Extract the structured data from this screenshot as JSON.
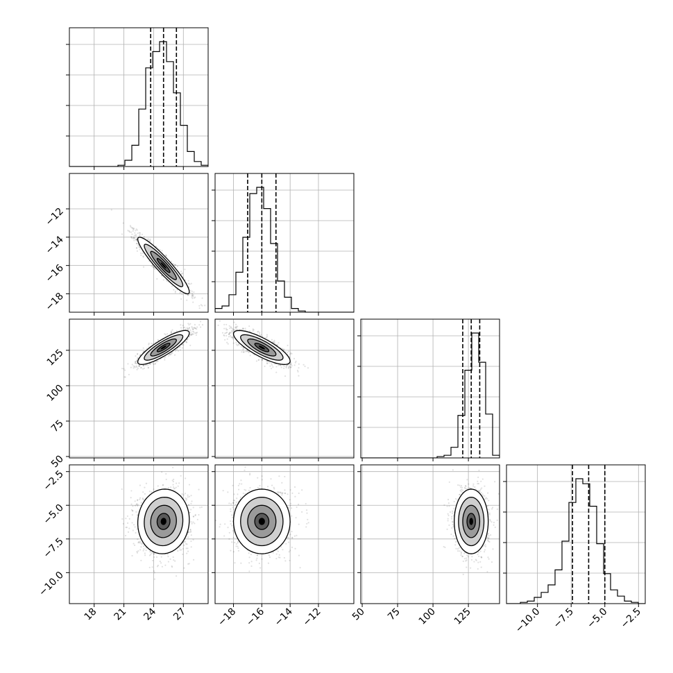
{
  "figure": {
    "background": "#ffffff",
    "scatter_color": "#000000",
    "axis_color": "#000000",
    "grid_color": "#b0b0b0"
  },
  "chart_data": {
    "type": "corner",
    "parameters": [
      {
        "range": [
          15.5,
          29.5
        ],
        "ticks": [
          18,
          21,
          24,
          27
        ],
        "tick_labels": [
          "18",
          "21",
          "24",
          "27"
        ],
        "quantiles": [
          23.7,
          25.0,
          26.3
        ]
      },
      {
        "range": [
          -19.3,
          -9.5
        ],
        "ticks": [
          -18,
          -16,
          -14,
          -12
        ],
        "tick_labels": [
          "−18",
          "−16",
          "−14",
          "−12"
        ],
        "quantiles": [
          -17.0,
          -16.0,
          -15.0
        ]
      },
      {
        "range": [
          49,
          147
        ],
        "ticks": [
          50,
          75,
          100,
          125
        ],
        "tick_labels": [
          "50",
          "75",
          "100",
          "125"
        ],
        "quantiles": [
          121,
          127,
          133
        ]
      },
      {
        "range": [
          -12.3,
          -2.0
        ],
        "ticks": [
          -10.0,
          -7.5,
          -5.0,
          -2.5
        ],
        "tick_labels": [
          "−10.0",
          "−7.5",
          "−5.0",
          "−2.5"
        ],
        "quantiles": [
          -7.4,
          -6.2,
          -5.0
        ]
      }
    ],
    "histograms": [
      {
        "param": 0,
        "bins": [
          15.5,
          16.2,
          16.9,
          17.6,
          18.3,
          19.0,
          19.7,
          20.4,
          21.1,
          21.8,
          22.5,
          23.2,
          23.9,
          24.6,
          25.3,
          26.0,
          26.7,
          27.4,
          28.1,
          28.8,
          29.5
        ],
        "counts": [
          0,
          0,
          0,
          0,
          0,
          0,
          0,
          0.01,
          0.05,
          0.17,
          0.46,
          0.79,
          0.92,
          1.0,
          0.84,
          0.59,
          0.33,
          0.12,
          0.04,
          0.01
        ]
      },
      {
        "param": 1,
        "bins": [
          -19.3,
          -18.81,
          -18.32,
          -17.83,
          -17.34,
          -16.85,
          -16.36,
          -15.87,
          -15.38,
          -14.89,
          -14.4,
          -13.91,
          -13.42,
          -12.93,
          -12.44,
          -11.95,
          -11.46,
          -10.97,
          -10.48,
          -9.99,
          -9.5
        ],
        "counts": [
          0.03,
          0.05,
          0.14,
          0.32,
          0.6,
          0.95,
          1.0,
          0.83,
          0.55,
          0.25,
          0.12,
          0.03,
          0.01,
          0,
          0,
          0,
          0,
          0,
          0,
          0
        ]
      },
      {
        "param": 2,
        "bins": [
          49,
          53.9,
          58.8,
          63.7,
          68.6,
          73.5,
          78.4,
          83.3,
          88.2,
          93.1,
          98,
          102.9,
          107.8,
          112.7,
          117.6,
          122.5,
          127.4,
          132.3,
          137.2,
          142.1,
          147
        ],
        "counts": [
          0,
          0,
          0,
          0,
          0,
          0,
          0,
          0,
          0,
          0,
          0,
          0.01,
          0.02,
          0.08,
          0.32,
          0.66,
          0.94,
          0.72,
          0.33,
          0.02
        ]
      },
      {
        "param": 3,
        "bins": [
          -12.3,
          -11.785,
          -11.27,
          -10.755,
          -10.24,
          -9.725,
          -9.21,
          -8.695,
          -8.18,
          -7.665,
          -7.15,
          -6.635,
          -6.12,
          -5.605,
          -5.09,
          -4.575,
          -4.06,
          -3.545,
          -3.03,
          -2.515,
          -2.0
        ],
        "counts": [
          0,
          0,
          0.01,
          0.02,
          0.05,
          0.09,
          0.15,
          0.27,
          0.5,
          0.81,
          1.0,
          0.96,
          0.78,
          0.48,
          0.24,
          0.11,
          0.06,
          0.02,
          0.01,
          0
        ]
      }
    ],
    "joint_2d": [
      {
        "x_param": 0,
        "y_param": 1,
        "mean": [
          25.0,
          -16.0
        ],
        "sd": [
          1.3,
          1.0
        ],
        "corr": -0.93
      },
      {
        "x_param": 0,
        "y_param": 2,
        "mean": [
          25.0,
          127
        ],
        "sd": [
          1.3,
          6
        ],
        "corr": 0.85
      },
      {
        "x_param": 1,
        "y_param": 2,
        "mean": [
          -16.0,
          127
        ],
        "sd": [
          1.0,
          6
        ],
        "corr": -0.8
      },
      {
        "x_param": 0,
        "y_param": 3,
        "mean": [
          25.0,
          -6.2
        ],
        "sd": [
          1.3,
          1.2
        ],
        "corr": 0.05
      },
      {
        "x_param": 1,
        "y_param": 3,
        "mean": [
          -16.0,
          -6.2
        ],
        "sd": [
          1.0,
          1.2
        ],
        "corr": 0.0
      },
      {
        "x_param": 2,
        "y_param": 3,
        "mean": [
          127,
          -6.2
        ],
        "sd": [
          6,
          1.2
        ],
        "corr": 0.0
      }
    ],
    "contour_levels_sigma": [
      0.5,
      1.0,
      1.5,
      2.0
    ],
    "grid": true,
    "title": "",
    "xlabel": "",
    "ylabel": ""
  }
}
